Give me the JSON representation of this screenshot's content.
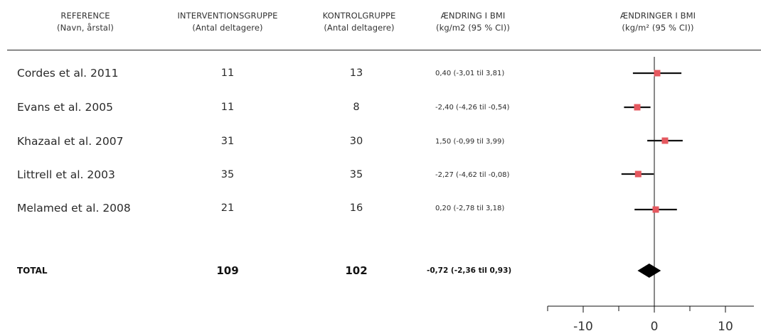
{
  "headers": {
    "reference": [
      "REFERENCE",
      "(Navn, årstal)"
    ],
    "intervention": [
      "INTERVENTIONSGRUPPE",
      "(Antal deltagere)"
    ],
    "control": [
      "KONTROLGRUPPE",
      "(Antal deltagere)"
    ],
    "change": [
      "ÆNDRING I BMI",
      "(kg/m2 (95 % CI))"
    ],
    "plot": [
      "ÆNDRINGER I BMI",
      "(kg/m² (95 % CI))"
    ]
  },
  "rows": [
    {
      "reference": "Cordes et al. 2011",
      "intervention_n": "11",
      "control_n": "13",
      "ci_text": "0,40 (-3,01 til 3,81)"
    },
    {
      "reference": "Evans et al. 2005",
      "intervention_n": "11",
      "control_n": "8",
      "ci_text": "-2,40 (-4,26 til -0,54)"
    },
    {
      "reference": "Khazaal et al. 2007",
      "intervention_n": "31",
      "control_n": "30",
      "ci_text": "1,50 (-0,99 til 3,99)"
    },
    {
      "reference": "Littrell et al. 2003",
      "intervention_n": "35",
      "control_n": "35",
      "ci_text": "-2,27 (-4,62 til -0,08)"
    },
    {
      "reference": "Melamed et al. 2008",
      "intervention_n": "21",
      "control_n": "16",
      "ci_text": "0,20 (-2,78 til 3,18)"
    }
  ],
  "total": {
    "label": "TOTAL",
    "intervention_n": "109",
    "control_n": "102",
    "ci_text": "-0,72 (-2,36 til 0,93)"
  },
  "colors": {
    "marker": "#e5585f",
    "line": "#111111",
    "diamond": "#000000"
  },
  "chart_data": {
    "type": "forest",
    "xlim": [
      -15,
      15
    ],
    "xticks": [
      -10,
      0,
      10
    ],
    "xtick_labels": [
      "-10",
      "0",
      "10"
    ],
    "studies": [
      {
        "name": "Cordes et al. 2011",
        "estimate": 0.4,
        "lower": -3.01,
        "upper": 3.81
      },
      {
        "name": "Evans et al. 2005",
        "estimate": -2.4,
        "lower": -4.26,
        "upper": -0.54
      },
      {
        "name": "Khazaal et al. 2007",
        "estimate": 1.5,
        "lower": -0.99,
        "upper": 3.99
      },
      {
        "name": "Littrell et al. 2003",
        "estimate": -2.27,
        "lower": -4.62,
        "upper": -0.08
      },
      {
        "name": "Melamed et al. 2008",
        "estimate": 0.2,
        "lower": -2.78,
        "upper": 3.18
      }
    ],
    "pooled": {
      "name": "TOTAL",
      "estimate": -0.72,
      "lower": -2.36,
      "upper": 0.93
    }
  }
}
